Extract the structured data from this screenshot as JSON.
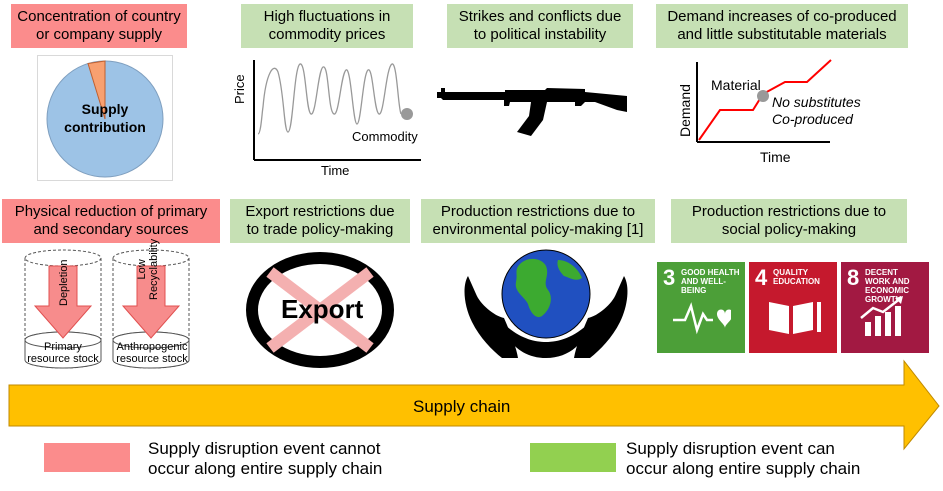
{
  "top_row": [
    {
      "line1": "Concentration of country",
      "line2": "or company supply",
      "kind": "red"
    },
    {
      "line1": "High fluctuations in",
      "line2": "commodity prices",
      "kind": "green"
    },
    {
      "line1": "Strikes and conflicts due",
      "line2": "to political instability",
      "kind": "green"
    },
    {
      "line1": "Demand increases of co-produced",
      "line2": "and little substitutable materials",
      "kind": "green"
    }
  ],
  "bottom_row": [
    {
      "line1": "Physical reduction of primary",
      "line2": "and secondary sources",
      "kind": "red"
    },
    {
      "line1": "Export restrictions due",
      "line2": "to trade policy-making",
      "kind": "green"
    },
    {
      "line1": "Production restrictions due to",
      "line2": "environmental policy-making [1]",
      "kind": "green"
    },
    {
      "line1": "Production restrictions due to",
      "line2": "social policy-making",
      "kind": "green"
    }
  ],
  "pie": {
    "label_line1": "Supply",
    "label_line2": "contribution"
  },
  "price_chart": {
    "ylabel": "Price",
    "xlabel": "Time",
    "point_label": "Commodity"
  },
  "demand_chart": {
    "ylabel": "Demand",
    "xlabel": "Time",
    "material_label": "Material",
    "note1": "No substitutes",
    "note2": "Co-produced"
  },
  "stocks": [
    {
      "arrow_label": "Depletion",
      "line1": "Primary",
      "line2": "resource stock"
    },
    {
      "arrow_label_1": "Low",
      "arrow_label_2": "Recyclability",
      "line1": "Anthropogenic",
      "line2": "resource stock"
    }
  ],
  "export_label": "Export",
  "sdg": [
    {
      "num": "3",
      "label": "GOOD HEALTH\nAND WELL-BEING",
      "color": "#4c9f38",
      "icon": "heartbeat-icon"
    },
    {
      "num": "4",
      "label": "QUALITY\nEDUCATION",
      "color": "#c5192d",
      "icon": "book-icon"
    },
    {
      "num": "8",
      "label": "DECENT WORK AND\nECONOMIC GROWTH",
      "color": "#a21942",
      "icon": "growth-chart-icon"
    }
  ],
  "arrow_label": "Supply chain",
  "legend": [
    {
      "line1": "Supply disruption event cannot",
      "line2": "occur along entire supply chain",
      "color": "#fb8c8c"
    },
    {
      "line1": "Supply disruption event can",
      "line2": "occur along entire supply chain",
      "color": "#92d050"
    }
  ],
  "colors": {
    "green_box": "#c6e0b4",
    "red_box": "#fb8c8c",
    "arrow": "#ffc000",
    "pie": "#9dc3e6",
    "pie_slice": "#f8a070",
    "line_red": "#ff0000"
  }
}
